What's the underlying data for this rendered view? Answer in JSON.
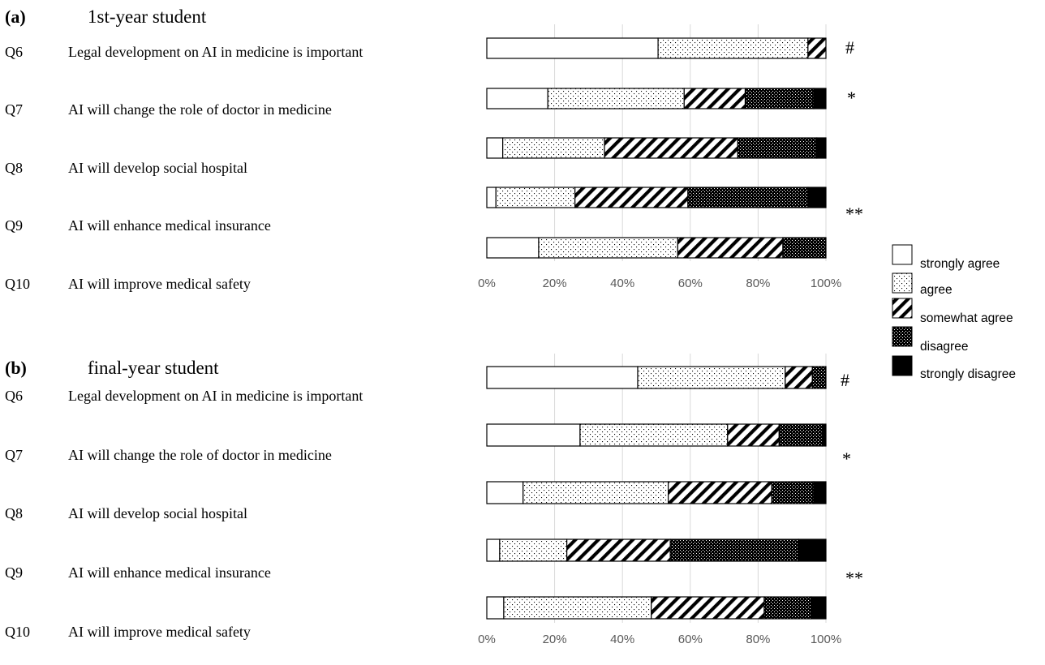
{
  "patterns": {
    "strongly agree": "blank",
    "agree": "dots",
    "somewhat agree": "diagonal-stripes",
    "disagree": "dense-dots",
    "strongly disagree": "solid-black"
  },
  "colors": {
    "axis_text": "#595959",
    "grid": "#d9d9d9",
    "bar_stroke": "#000000",
    "dark_segment_edge": "#4472c4"
  },
  "chart_data": [
    {
      "type": "bar",
      "orientation": "horizontal",
      "stacked": "percent",
      "panel_letter": "(a)",
      "title": "1st-year student",
      "categories": [
        "Q6",
        "Q7",
        "Q8",
        "Q9",
        "Q10"
      ],
      "question_text": [
        "Legal development on AI in medicine is important",
        "AI will change the role of doctor in medicine",
        "AI will develop social hospital",
        "AI will enhance medical insurance",
        "AI will improve medical safety"
      ],
      "series": [
        {
          "name": "strongly agree",
          "values": [
            50.5,
            18,
            4.7,
            2.7,
            15.3
          ]
        },
        {
          "name": "agree",
          "values": [
            44.2,
            40.2,
            30,
            23.3,
            41
          ]
        },
        {
          "name": "somewhat agree",
          "values": [
            5.3,
            18,
            39.3,
            33.3,
            31
          ]
        },
        {
          "name": "disagree",
          "values": [
            0,
            20.2,
            23.3,
            35.4,
            12.7
          ]
        },
        {
          "name": "strongly disagree",
          "values": [
            0,
            3.6,
            2.7,
            5.3,
            0
          ]
        }
      ],
      "xlim": [
        0,
        100
      ],
      "x_ticks": [
        "0%",
        "20%",
        "40%",
        "60%",
        "80%",
        "100%"
      ],
      "grid": true,
      "annotations": [
        {
          "row": 0,
          "text": "#"
        },
        {
          "row": 1,
          "text": "*"
        },
        {
          "row": 3,
          "text": "**"
        }
      ]
    },
    {
      "type": "bar",
      "orientation": "horizontal",
      "stacked": "percent",
      "panel_letter": "(b)",
      "title": "final-year student",
      "categories": [
        "Q6",
        "Q7",
        "Q8",
        "Q9",
        "Q10"
      ],
      "question_text": [
        "Legal development on AI in medicine is important",
        "AI will change the role of doctor in medicine",
        "AI will develop social hospital",
        "AI will enhance medical insurance",
        "AI will improve medical safety"
      ],
      "series": [
        {
          "name": "strongly agree",
          "values": [
            44.5,
            27.5,
            10.7,
            3.8,
            5
          ]
        },
        {
          "name": "agree",
          "values": [
            43.5,
            43.5,
            42.8,
            19.8,
            43.5
          ]
        },
        {
          "name": "somewhat agree",
          "values": [
            8,
            15.2,
            30.5,
            30.5,
            33.3
          ]
        },
        {
          "name": "disagree",
          "values": [
            4,
            12.7,
            12.4,
            37.8,
            13.8
          ]
        },
        {
          "name": "strongly disagree",
          "values": [
            0,
            1.1,
            3.6,
            8.1,
            4.4
          ]
        }
      ],
      "xlim": [
        0,
        100
      ],
      "x_ticks": [
        "0%",
        "20%",
        "40%",
        "60%",
        "80%",
        "100%"
      ],
      "grid": true,
      "annotations": [
        {
          "row": 0,
          "text": "#"
        },
        {
          "row": 1,
          "text": "*"
        },
        {
          "row": 3,
          "text": "**"
        }
      ]
    }
  ],
  "legend": {
    "position": "right",
    "entries": [
      "strongly agree",
      "agree",
      "somewhat agree",
      "disagree",
      "strongly disagree"
    ]
  }
}
